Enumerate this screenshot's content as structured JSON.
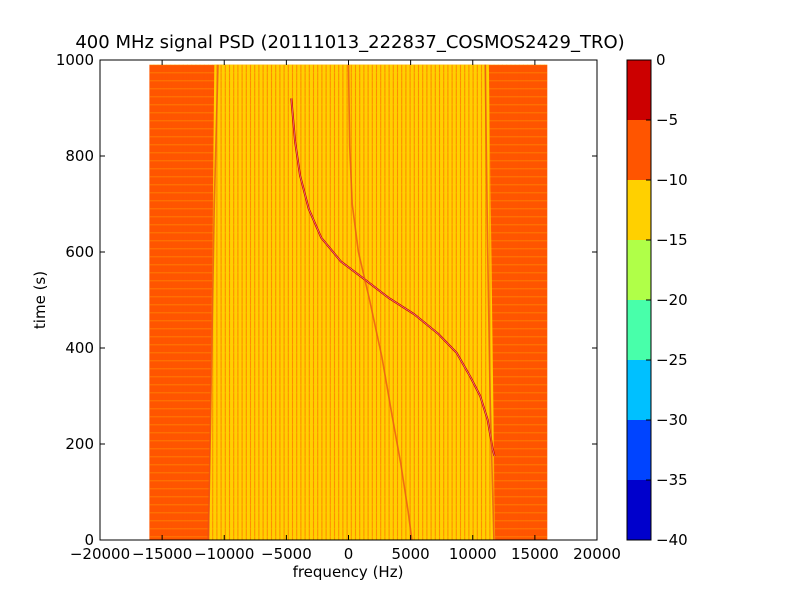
{
  "chart_data": {
    "type": "heatmap",
    "title": "400 MHz signal PSD (20111013_222837_COSMOS2429_TRO)",
    "xlabel": "frequency (Hz)",
    "ylabel": "time (s)",
    "xlim": [
      -20000,
      20000
    ],
    "ylim": [
      0,
      1000
    ],
    "x_ticks": [
      -20000,
      -15000,
      -10000,
      -5000,
      0,
      5000,
      10000,
      15000,
      20000
    ],
    "x_tick_labels": [
      "−20000",
      "−15000",
      "−10000",
      "−5000",
      "0",
      "5000",
      "10000",
      "15000",
      "20000"
    ],
    "y_ticks": [
      0,
      200,
      400,
      600,
      800,
      1000
    ],
    "y_tick_labels": [
      "0",
      "200",
      "400",
      "600",
      "800",
      "1000"
    ],
    "data_extent": {
      "x": [
        -16000,
        16000
      ],
      "y": [
        0,
        990
      ]
    },
    "background_level": {
      "inner_band": "-15 to -10",
      "outer_band": "-10 to -5"
    },
    "colorbar": {
      "levels": [
        -40,
        -35,
        -30,
        -25,
        -20,
        -15,
        -10,
        -5,
        0
      ],
      "tick_labels": [
        "−40",
        "−35",
        "−30",
        "−25",
        "−20",
        "−15",
        "−10",
        "−5",
        "0"
      ],
      "colors": [
        "#0000cc",
        "#0044ff",
        "#00c0ff",
        "#48ffaa",
        "#b0ff48",
        "#ffd000",
        "#ff5500",
        "#cc0000"
      ]
    },
    "traces": [
      {
        "level": "-5 to 0",
        "points": [
          [
            -4600,
            920
          ],
          [
            -4300,
            830
          ],
          [
            -3900,
            760
          ],
          [
            -3200,
            690
          ],
          [
            -2200,
            630
          ],
          [
            -600,
            580
          ],
          [
            1200,
            545
          ],
          [
            3200,
            505
          ],
          [
            5300,
            470
          ],
          [
            7200,
            430
          ],
          [
            8700,
            390
          ],
          [
            9800,
            340
          ],
          [
            10600,
            300
          ],
          [
            11200,
            250
          ],
          [
            11600,
            190
          ],
          [
            11750,
            175
          ]
        ]
      },
      {
        "level": "-10 to -5",
        "points": [
          [
            -10500,
            990
          ],
          [
            -10800,
            700
          ],
          [
            -11000,
            400
          ],
          [
            -11200,
            100
          ],
          [
            -11300,
            0
          ]
        ]
      },
      {
        "level": "-10 to -5",
        "points": [
          [
            11000,
            990
          ],
          [
            11200,
            600
          ],
          [
            11400,
            300
          ],
          [
            11700,
            0
          ]
        ]
      },
      {
        "level": "-10 to -5",
        "points": [
          [
            0,
            990
          ],
          [
            100,
            820
          ],
          [
            300,
            700
          ],
          [
            800,
            600
          ],
          [
            1700,
            500
          ],
          [
            2700,
            380
          ],
          [
            3500,
            260
          ],
          [
            4200,
            160
          ],
          [
            4800,
            60
          ],
          [
            5100,
            0
          ]
        ]
      }
    ]
  }
}
